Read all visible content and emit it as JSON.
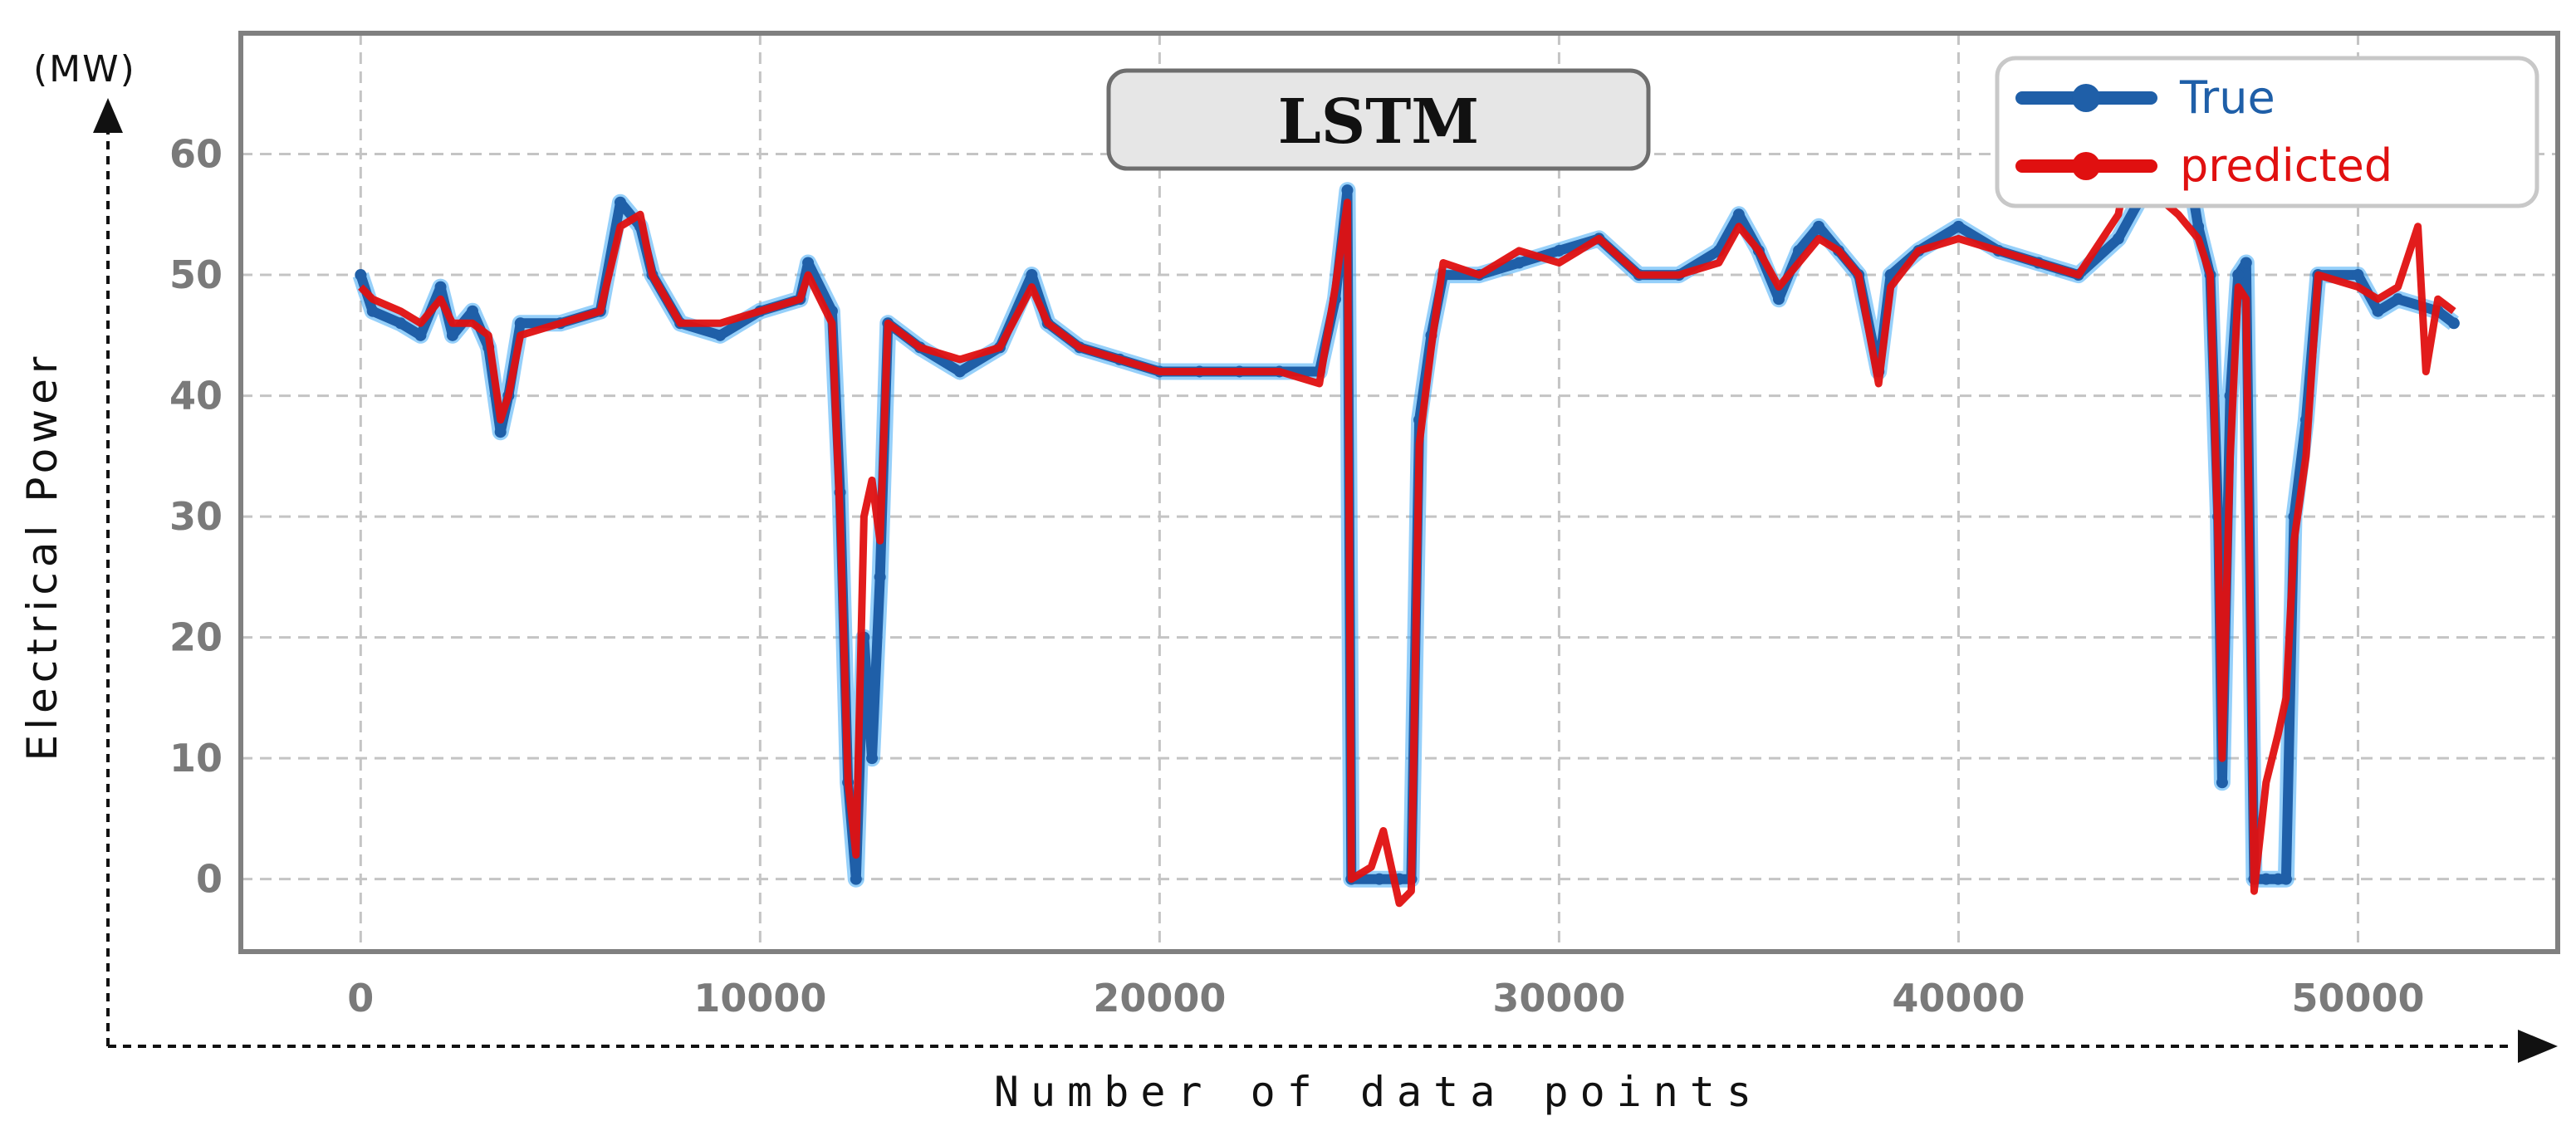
{
  "chart_data": {
    "type": "line",
    "title": "LSTM",
    "xlabel": "Number of data points",
    "ylabel": "Electrical Power",
    "unit_label": "(MW)",
    "xlim": [
      -3000,
      55000
    ],
    "ylim": [
      -6,
      70
    ],
    "x_ticks": [
      0,
      10000,
      20000,
      30000,
      40000,
      50000
    ],
    "y_ticks": [
      0,
      10,
      20,
      30,
      40,
      50,
      60
    ],
    "grid": true,
    "legend_position": "top-right",
    "series": [
      {
        "name": "True",
        "color": "#1f5fa8",
        "points": [
          [
            0,
            50
          ],
          [
            300,
            47
          ],
          [
            1000,
            46
          ],
          [
            1500,
            45
          ],
          [
            2000,
            49
          ],
          [
            2300,
            45
          ],
          [
            2800,
            47
          ],
          [
            3200,
            44
          ],
          [
            3500,
            37
          ],
          [
            3700,
            40
          ],
          [
            4000,
            46
          ],
          [
            5000,
            46
          ],
          [
            6000,
            47
          ],
          [
            6500,
            56
          ],
          [
            7000,
            54
          ],
          [
            7300,
            50
          ],
          [
            8000,
            46
          ],
          [
            9000,
            45
          ],
          [
            10000,
            47
          ],
          [
            11000,
            48
          ],
          [
            11200,
            51
          ],
          [
            11800,
            47
          ],
          [
            12000,
            32
          ],
          [
            12200,
            8
          ],
          [
            12400,
            0
          ],
          [
            12600,
            20
          ],
          [
            12800,
            10
          ],
          [
            13000,
            25
          ],
          [
            13200,
            46
          ],
          [
            14000,
            44
          ],
          [
            15000,
            42
          ],
          [
            16000,
            44
          ],
          [
            16800,
            50
          ],
          [
            17200,
            46
          ],
          [
            18000,
            44
          ],
          [
            19000,
            43
          ],
          [
            20000,
            42
          ],
          [
            21000,
            42
          ],
          [
            22000,
            42
          ],
          [
            23000,
            42
          ],
          [
            24000,
            42
          ],
          [
            24400,
            48
          ],
          [
            24700,
            57
          ],
          [
            24800,
            0
          ],
          [
            25500,
            0
          ],
          [
            26000,
            0
          ],
          [
            26300,
            0
          ],
          [
            26500,
            38
          ],
          [
            26800,
            45
          ],
          [
            27100,
            50
          ],
          [
            28000,
            50
          ],
          [
            29000,
            51
          ],
          [
            30000,
            52
          ],
          [
            31000,
            53
          ],
          [
            32000,
            50
          ],
          [
            33000,
            50
          ],
          [
            34000,
            52
          ],
          [
            34500,
            55
          ],
          [
            35000,
            52
          ],
          [
            35500,
            48
          ],
          [
            36000,
            52
          ],
          [
            36500,
            54
          ],
          [
            37000,
            52
          ],
          [
            37500,
            50
          ],
          [
            38000,
            42
          ],
          [
            38300,
            50
          ],
          [
            39000,
            52
          ],
          [
            40000,
            54
          ],
          [
            41000,
            52
          ],
          [
            42000,
            51
          ],
          [
            43000,
            50
          ],
          [
            44000,
            53
          ],
          [
            44500,
            56
          ],
          [
            45000,
            58
          ],
          [
            45400,
            61
          ],
          [
            45800,
            58
          ],
          [
            46000,
            54
          ],
          [
            46300,
            50
          ],
          [
            46500,
            30
          ],
          [
            46600,
            8
          ],
          [
            46800,
            40
          ],
          [
            47000,
            50
          ],
          [
            47200,
            51
          ],
          [
            47400,
            0
          ],
          [
            47700,
            0
          ],
          [
            48000,
            0
          ],
          [
            48200,
            0
          ],
          [
            48400,
            30
          ],
          [
            48700,
            38
          ],
          [
            49000,
            50
          ],
          [
            50000,
            50
          ],
          [
            50500,
            47
          ],
          [
            51000,
            48
          ],
          [
            52000,
            47
          ],
          [
            52400,
            46
          ]
        ]
      },
      {
        "name": "predicted",
        "color": "#e01010",
        "points": [
          [
            0,
            49
          ],
          [
            300,
            48
          ],
          [
            1000,
            47
          ],
          [
            1500,
            46
          ],
          [
            2000,
            48
          ],
          [
            2300,
            46
          ],
          [
            2800,
            46
          ],
          [
            3200,
            45
          ],
          [
            3500,
            38
          ],
          [
            3700,
            40
          ],
          [
            4000,
            45
          ],
          [
            5000,
            46
          ],
          [
            6000,
            47
          ],
          [
            6500,
            54
          ],
          [
            7000,
            55
          ],
          [
            7300,
            50
          ],
          [
            8000,
            46
          ],
          [
            9000,
            46
          ],
          [
            10000,
            47
          ],
          [
            11000,
            48
          ],
          [
            11200,
            50
          ],
          [
            11800,
            46
          ],
          [
            12000,
            30
          ],
          [
            12200,
            8
          ],
          [
            12400,
            2
          ],
          [
            12600,
            30
          ],
          [
            12800,
            33
          ],
          [
            13000,
            28
          ],
          [
            13200,
            46
          ],
          [
            14000,
            44
          ],
          [
            15000,
            43
          ],
          [
            16000,
            44
          ],
          [
            16800,
            49
          ],
          [
            17200,
            46
          ],
          [
            18000,
            44
          ],
          [
            19000,
            43
          ],
          [
            20000,
            42
          ],
          [
            21000,
            42
          ],
          [
            22000,
            42
          ],
          [
            23000,
            42
          ],
          [
            24000,
            41
          ],
          [
            24400,
            49
          ],
          [
            24700,
            56
          ],
          [
            24800,
            0
          ],
          [
            25300,
            1
          ],
          [
            25600,
            4
          ],
          [
            26000,
            -2
          ],
          [
            26300,
            -1
          ],
          [
            26500,
            36
          ],
          [
            26800,
            44
          ],
          [
            27100,
            51
          ],
          [
            28000,
            50
          ],
          [
            29000,
            52
          ],
          [
            30000,
            51
          ],
          [
            31000,
            53
          ],
          [
            32000,
            50
          ],
          [
            33000,
            50
          ],
          [
            34000,
            51
          ],
          [
            34500,
            54
          ],
          [
            35000,
            52
          ],
          [
            35500,
            49
          ],
          [
            36000,
            51
          ],
          [
            36500,
            53
          ],
          [
            37000,
            52
          ],
          [
            37500,
            50
          ],
          [
            38000,
            41
          ],
          [
            38300,
            49
          ],
          [
            39000,
            52
          ],
          [
            40000,
            53
          ],
          [
            41000,
            52
          ],
          [
            42000,
            51
          ],
          [
            43000,
            50
          ],
          [
            44000,
            55
          ],
          [
            44300,
            60
          ],
          [
            44800,
            57
          ],
          [
            45500,
            55
          ],
          [
            46000,
            53
          ],
          [
            46300,
            50
          ],
          [
            46500,
            28
          ],
          [
            46600,
            10
          ],
          [
            46800,
            35
          ],
          [
            47000,
            49
          ],
          [
            47200,
            48
          ],
          [
            47400,
            -1
          ],
          [
            47700,
            8
          ],
          [
            48000,
            12
          ],
          [
            48200,
            15
          ],
          [
            48400,
            28
          ],
          [
            48700,
            35
          ],
          [
            49000,
            50
          ],
          [
            50000,
            49
          ],
          [
            50500,
            48
          ],
          [
            51000,
            49
          ],
          [
            51500,
            54
          ],
          [
            51700,
            42
          ],
          [
            52000,
            48
          ],
          [
            52400,
            47
          ]
        ]
      }
    ]
  }
}
